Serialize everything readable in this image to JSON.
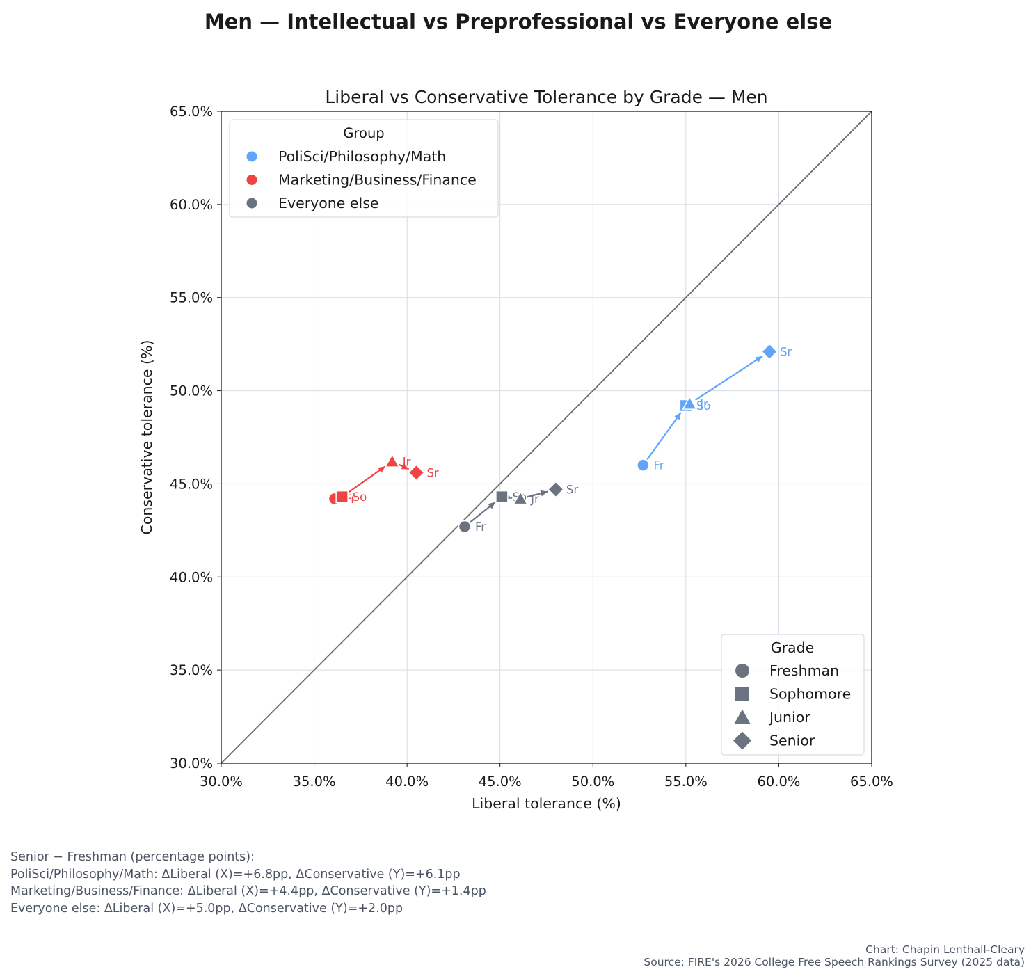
{
  "figure": {
    "suptitle": "Men — Intellectual vs Preprofessional vs Everyone else",
    "notes_title": "Senior − Freshman (percentage points):",
    "notes": [
      "PoliSci/Philosophy/Math: ΔLiberal (X)=+6.8pp, ΔConservative (Y)=+6.1pp",
      "Marketing/Business/Finance: ΔLiberal (X)=+4.4pp, ΔConservative (Y)=+1.4pp",
      "Everyone else: ΔLiberal (X)=+5.0pp, ΔConservative (Y)=+2.0pp"
    ],
    "credit_chart": "Chart: Chapin Lenthall-Cleary",
    "credit_source": "Source: FIRE's 2026 College Free Speech Rankings Survey (2025 data)"
  },
  "chart_data": {
    "type": "scatter",
    "title": "Liberal vs Conservative Tolerance by Grade — Men",
    "xlabel": "Liberal tolerance (%)",
    "ylabel": "Conservative tolerance (%)",
    "xlim": [
      30,
      65
    ],
    "ylim": [
      30,
      65
    ],
    "ticks": [
      30,
      35,
      40,
      45,
      50,
      55,
      60,
      65
    ],
    "tick_labels": [
      "30.0%",
      "35.0%",
      "40.0%",
      "45.0%",
      "50.0%",
      "55.0%",
      "60.0%",
      "65.0%"
    ],
    "grid": true,
    "diagonal": true,
    "legend_group": {
      "title": "Group",
      "placement": "upper-left",
      "entries": [
        "PoliSci/Philosophy/Math",
        "Marketing/Business/Finance",
        "Everyone else"
      ]
    },
    "legend_grade": {
      "title": "Grade",
      "placement": "lower-right",
      "entries": [
        {
          "label": "Freshman",
          "marker": "circle"
        },
        {
          "label": "Sophomore",
          "marker": "square"
        },
        {
          "label": "Junior",
          "marker": "triangle"
        },
        {
          "label": "Senior",
          "marker": "diamond"
        }
      ]
    },
    "series": [
      {
        "name": "PoliSci/Philosophy/Math",
        "color": "#60a5fa",
        "points": [
          {
            "grade": "Fr",
            "marker": "circle",
            "x": 52.7,
            "y": 46.0
          },
          {
            "grade": "So",
            "marker": "square",
            "x": 55.0,
            "y": 49.2
          },
          {
            "grade": "Jr",
            "marker": "triangle",
            "x": 55.2,
            "y": 49.3
          },
          {
            "grade": "Sr",
            "marker": "diamond",
            "x": 59.5,
            "y": 52.1
          }
        ]
      },
      {
        "name": "Marketing/Business/Finance",
        "color": "#ef4444",
        "points": [
          {
            "grade": "Fr",
            "marker": "circle",
            "x": 36.1,
            "y": 44.2
          },
          {
            "grade": "So",
            "marker": "square",
            "x": 36.5,
            "y": 44.3
          },
          {
            "grade": "Jr",
            "marker": "triangle",
            "x": 39.2,
            "y": 46.2
          },
          {
            "grade": "Sr",
            "marker": "diamond",
            "x": 40.5,
            "y": 45.6
          }
        ]
      },
      {
        "name": "Everyone else",
        "color": "#6b7280",
        "points": [
          {
            "grade": "Fr",
            "marker": "circle",
            "x": 43.1,
            "y": 42.7
          },
          {
            "grade": "So",
            "marker": "square",
            "x": 45.1,
            "y": 44.3
          },
          {
            "grade": "Jr",
            "marker": "triangle",
            "x": 46.1,
            "y": 44.2
          },
          {
            "grade": "Sr",
            "marker": "diamond",
            "x": 48.0,
            "y": 44.7
          }
        ]
      }
    ]
  }
}
